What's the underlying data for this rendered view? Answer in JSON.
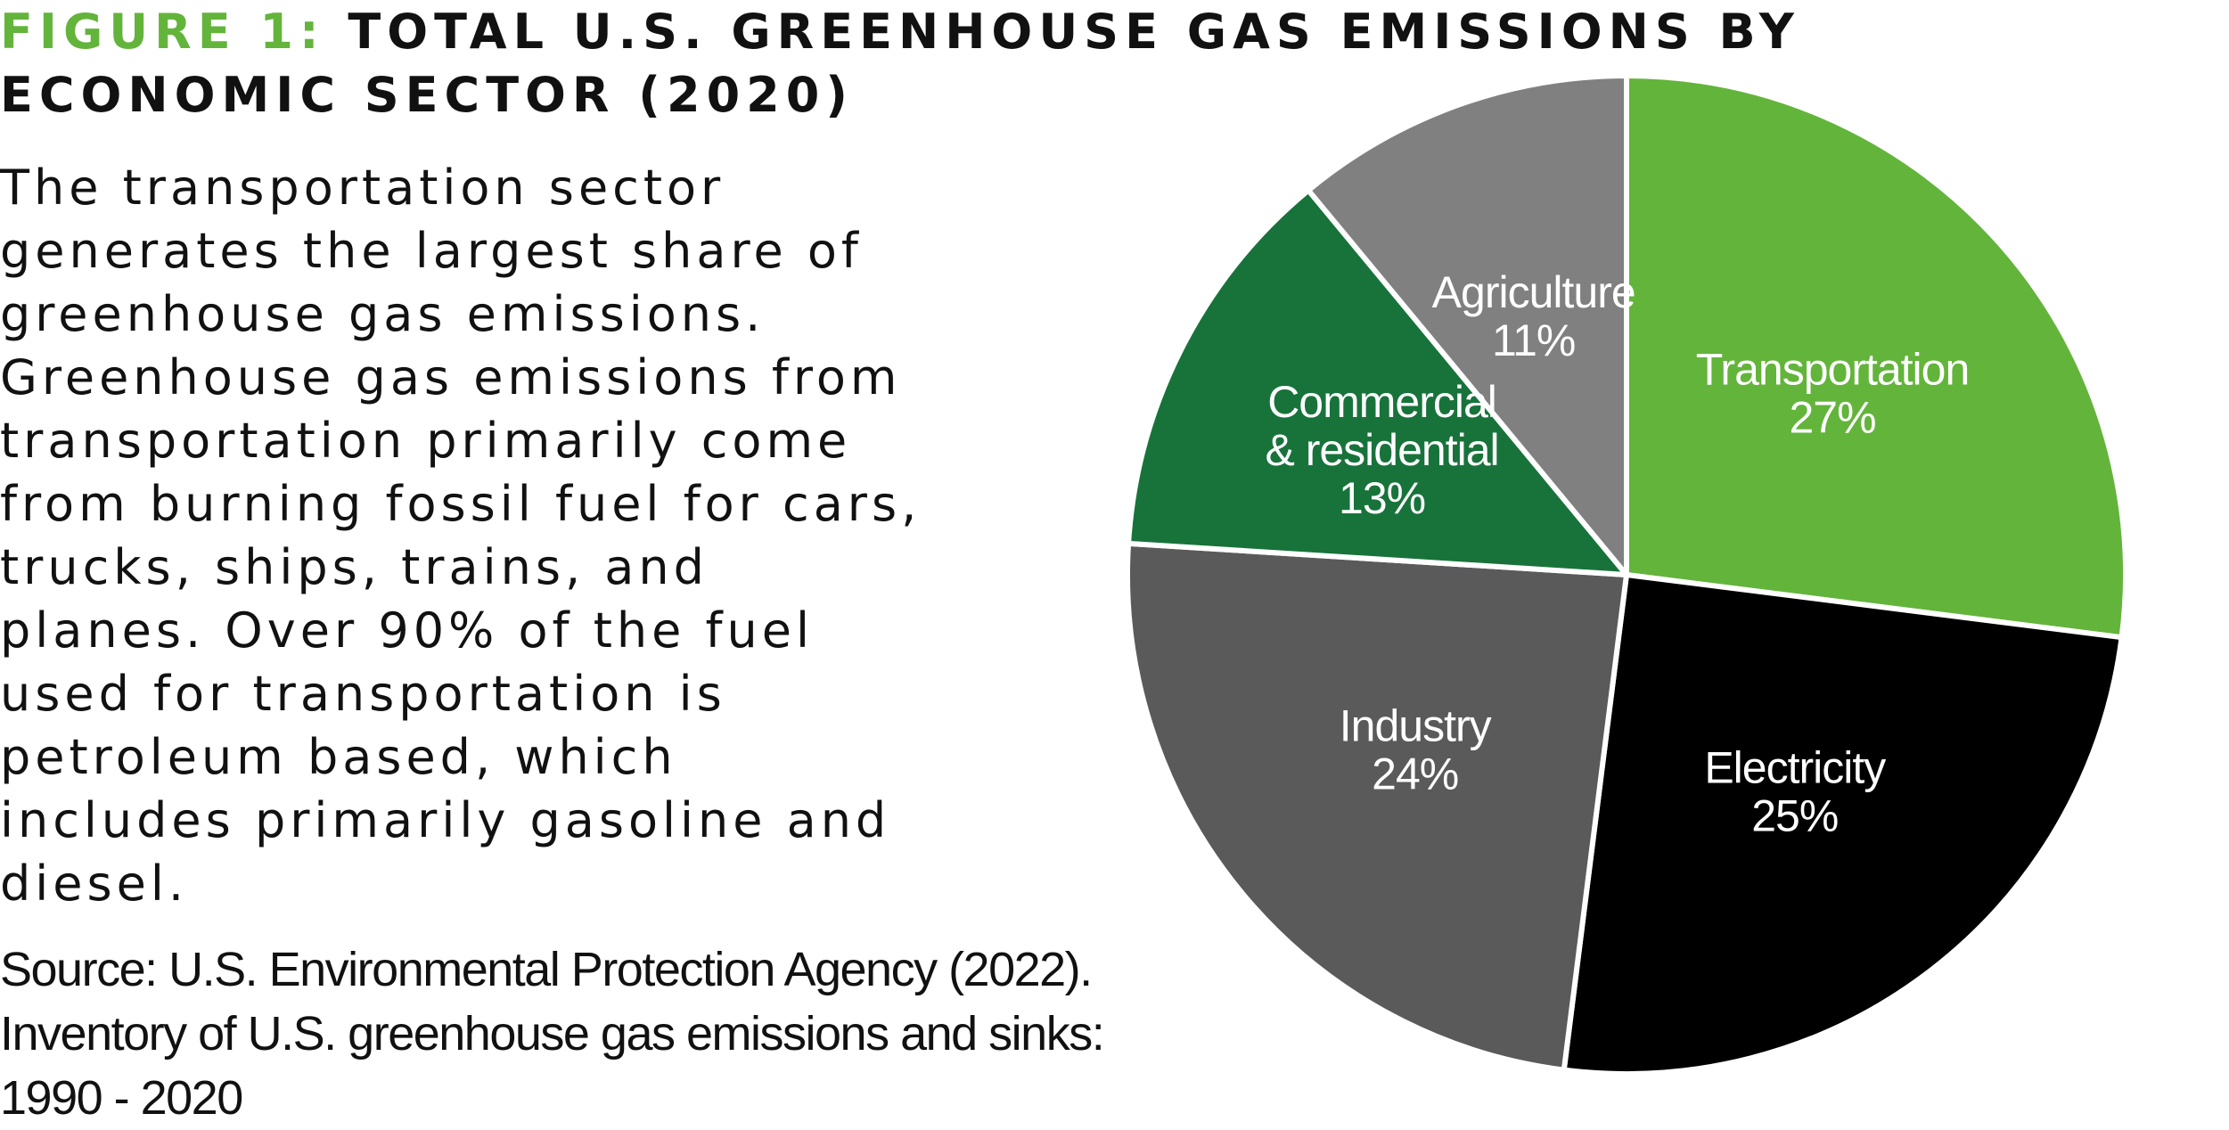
{
  "header": {
    "figure_label": "FIGURE 1:",
    "title_text": "TOTAL U.S. GREENHOUSE GAS EMISSIONS BY ECONOMIC SECTOR (2020)"
  },
  "description": "The transportation sector generates the largest share of greenhouse gas emissions. Greenhouse gas emissions from transportation primarily come from burning fossil fuel for cars, trucks, ships, trains, and planes. Over 90% of the fuel used for transportation is petroleum based, which includes primarily gasoline and diesel.",
  "source": {
    "line1": "Source:  U.S. Environmental Protection Agency (2022).",
    "line2": "Inventory of U.S. greenhouse gas emissions and sinks:",
    "line3": "1990 - 2020"
  },
  "colors": {
    "accent_green": "#63b43b",
    "text": "#111111",
    "slice_separator": "#ffffff"
  },
  "chart_data": {
    "type": "pie",
    "title": "TOTAL U.S. GREENHOUSE GAS EMISSIONS BY ECONOMIC SECTOR (2020)",
    "unit": "%",
    "start_direction": "top",
    "direction": "clockwise",
    "slices": [
      {
        "label": "Transportation",
        "label_lines": [
          "Transportation"
        ],
        "value": 27,
        "value_text": "27%",
        "color": "#63b43b"
      },
      {
        "label": "Electricity",
        "label_lines": [
          "Electricity"
        ],
        "value": 25,
        "value_text": "25%",
        "color": "#000000"
      },
      {
        "label": "Industry",
        "label_lines": [
          "Industry"
        ],
        "value": 24,
        "value_text": "24%",
        "color": "#5a5a5a"
      },
      {
        "label": "Commercial & residential",
        "label_lines": [
          "Commercial",
          "& residential"
        ],
        "value": 13,
        "value_text": "13%",
        "color": "#18733b"
      },
      {
        "label": "Agriculture",
        "label_lines": [
          "Agriculture"
        ],
        "value": 11,
        "value_text": "11%",
        "color": "#808080"
      }
    ]
  }
}
